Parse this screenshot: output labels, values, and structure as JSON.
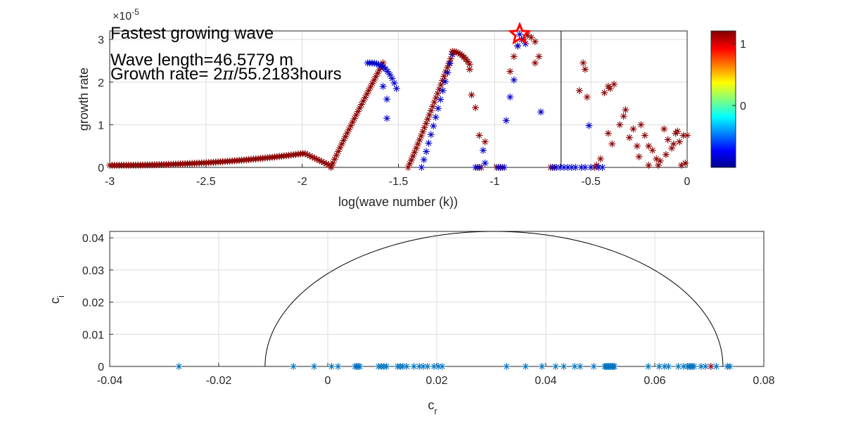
{
  "chart_data": [
    {
      "type": "scatter",
      "xlabel": "log(wave number (k))",
      "ylabel": "growth rate",
      "y_exponent": "×10",
      "y_exponent_power": "-5",
      "xlim": [
        -3,
        0
      ],
      "ylim": [
        0,
        3.2
      ],
      "xticks": [
        "-3",
        "-2.5",
        "-2",
        "-1.5",
        "-1",
        "-0.5",
        "0"
      ],
      "yticks": [
        "0",
        "1",
        "2",
        "3"
      ],
      "grid": true,
      "marker": "asterisk",
      "colormap": "jet",
      "colorbar": {
        "ticks": [
          "1",
          "0"
        ],
        "range": [
          -1,
          1.2
        ],
        "location": "right"
      },
      "annotations": {
        "line1": "Fastest growing wave",
        "line2": "Wave length=46.5779 m",
        "line3_prefix": "Growth rate= 2",
        "line3_pi": "π",
        "line3_suffix": "/55.2183hours"
      },
      "vertical_line_x": -0.655,
      "highlight": {
        "x": -0.87,
        "y": 3.12,
        "color": "#ff0000",
        "marker": "star"
      },
      "colors": {
        "red": "#8b0000",
        "blue": "#0000cd"
      },
      "series": [
        {
          "color": "red",
          "x_range": [
            -3.0,
            -1.85
          ],
          "n": 95,
          "shape": "broadband"
        },
        {
          "color": "red",
          "x_range": [
            -1.85,
            -1.58
          ],
          "n": 30,
          "shape": "rise1"
        },
        {
          "color": "blue",
          "x_range": [
            -1.66,
            -1.51
          ],
          "n": 14,
          "shape": "peak1"
        },
        {
          "color": "red",
          "x_range": [
            -1.45,
            -1.22
          ],
          "n": 28,
          "shape": "rise2"
        },
        {
          "color": "blue",
          "x_range": [
            -1.38,
            -1.22
          ],
          "n": 14,
          "shape": "rise2"
        },
        {
          "color": "red",
          "x_range": [
            -1.22,
            -1.13
          ],
          "n": 10,
          "shape": "peak2"
        }
      ],
      "points_red": [
        [
          -1.13,
          2.3
        ],
        [
          -1.12,
          1.7
        ],
        [
          -1.1,
          1.4
        ],
        [
          -1.08,
          0.75
        ],
        [
          -1.05,
          0.6
        ],
        [
          -1.09,
          0.0
        ],
        [
          -1.07,
          0.0
        ],
        [
          -0.96,
          0.0
        ],
        [
          -0.99,
          0.0
        ],
        [
          -0.92,
          2.25
        ],
        [
          -0.9,
          2.6
        ],
        [
          -0.88,
          2.85
        ],
        [
          -0.85,
          3.0
        ],
        [
          -0.83,
          3.1
        ],
        [
          -0.81,
          3.05
        ],
        [
          -0.79,
          2.95
        ],
        [
          -0.77,
          2.6
        ],
        [
          -0.79,
          2.45
        ],
        [
          -0.71,
          0.0
        ],
        [
          -0.69,
          0.0
        ],
        [
          -0.56,
          1.8
        ],
        [
          -0.54,
          2.45
        ],
        [
          -0.53,
          2.3
        ],
        [
          -0.52,
          1.65
        ],
        [
          -0.48,
          0.0
        ],
        [
          -0.47,
          0.05
        ],
        [
          -0.45,
          0.2
        ],
        [
          -0.43,
          1.75
        ],
        [
          -0.41,
          1.9
        ],
        [
          -0.4,
          1.85
        ],
        [
          -0.38,
          1.95
        ],
        [
          -0.41,
          0.8
        ],
        [
          -0.39,
          0.55
        ],
        [
          -0.35,
          1.0
        ],
        [
          -0.33,
          1.2
        ],
        [
          -0.32,
          1.35
        ],
        [
          -0.3,
          0.7
        ],
        [
          -0.28,
          0.9
        ],
        [
          -0.26,
          0.5
        ],
        [
          -0.24,
          1.0
        ],
        [
          -0.22,
          0.75
        ],
        [
          -0.2,
          0.5
        ],
        [
          -0.18,
          0.4
        ],
        [
          -0.16,
          0.2
        ],
        [
          -0.14,
          0.15
        ],
        [
          -0.12,
          0.9
        ],
        [
          -0.1,
          0.65
        ],
        [
          -0.08,
          0.45
        ],
        [
          -0.06,
          0.8
        ],
        [
          -0.04,
          0.6
        ],
        [
          -0.02,
          0.75
        ],
        [
          -0.01,
          0.1
        ],
        [
          -0.03,
          0.05
        ],
        [
          -0.25,
          0.25
        ],
        [
          -0.2,
          0.05
        ],
        [
          -0.15,
          0.05
        ],
        [
          -0.11,
          0.3
        ],
        [
          -0.07,
          0.55
        ],
        [
          -0.05,
          0.85
        ],
        [
          0.0,
          0.75
        ]
      ],
      "points_blue": [
        [
          -1.58,
          1.9
        ],
        [
          -1.56,
          1.6
        ],
        [
          -1.56,
          1.15
        ],
        [
          -1.06,
          0.4
        ],
        [
          -1.05,
          0.1
        ],
        [
          -1.1,
          0.0
        ],
        [
          -1.08,
          0.0
        ],
        [
          -0.98,
          0.0
        ],
        [
          -0.97,
          0.0
        ],
        [
          -0.95,
          0.0
        ],
        [
          -0.94,
          1.1
        ],
        [
          -0.92,
          1.65
        ],
        [
          -0.9,
          2.05
        ],
        [
          -0.88,
          2.85
        ],
        [
          -0.87,
          3.12
        ],
        [
          -0.86,
          3.0
        ],
        [
          -0.84,
          2.9
        ],
        [
          -0.76,
          1.3
        ],
        [
          -0.7,
          0.0
        ],
        [
          -0.68,
          0.0
        ],
        [
          -0.66,
          0.0
        ],
        [
          -0.64,
          0.0
        ],
        [
          -0.62,
          0.0
        ],
        [
          -0.6,
          0.0
        ],
        [
          -0.58,
          0.0
        ],
        [
          -0.55,
          0.0
        ],
        [
          -0.53,
          0.0
        ],
        [
          -0.51,
          0.98
        ],
        [
          -0.46,
          0.0
        ],
        [
          -0.44,
          0.0
        ],
        [
          -0.5,
          0.0
        ]
      ]
    },
    {
      "type": "scatter",
      "xlabel_main": "c",
      "xlabel_sub": "r",
      "ylabel_main": "c",
      "ylabel_sub": "i",
      "xlim": [
        -0.04,
        0.08
      ],
      "ylim": [
        0,
        0.042
      ],
      "xticks": [
        "-0.04",
        "-0.02",
        "0",
        "0.02",
        "0.04",
        "0.06",
        "0.08"
      ],
      "yticks": [
        "0",
        "0.01",
        "0.02",
        "0.03",
        "0.04"
      ],
      "grid": true,
      "marker": "asterisk",
      "marker_color": "#0072bd",
      "semicircle": {
        "center": 0.0305,
        "radius": 0.042,
        "color": "#000000"
      },
      "highlight": {
        "x": 0.0703,
        "y": 0.0,
        "color": "#a2142f"
      },
      "x_values": [
        -0.0273,
        -0.0063,
        -0.0025,
        0.0007,
        0.0019,
        0.005,
        0.0053,
        0.0056,
        0.0059,
        0.0093,
        0.0098,
        0.0103,
        0.0108,
        0.0128,
        0.0133,
        0.0138,
        0.0145,
        0.0158,
        0.0168,
        0.0175,
        0.0183,
        0.0195,
        0.0203,
        0.021,
        0.0328,
        0.0363,
        0.0393,
        0.0418,
        0.0433,
        0.0453,
        0.0463,
        0.0488,
        0.0508,
        0.051,
        0.0512,
        0.0514,
        0.0516,
        0.0518,
        0.052,
        0.0522,
        0.0524,
        0.0526,
        0.0588,
        0.0608,
        0.0618,
        0.0625,
        0.0643,
        0.0653,
        0.066,
        0.0663,
        0.0666,
        0.0669,
        0.0672,
        0.0685,
        0.0693,
        0.0703,
        0.0713,
        0.0733,
        0.0738
      ]
    }
  ]
}
